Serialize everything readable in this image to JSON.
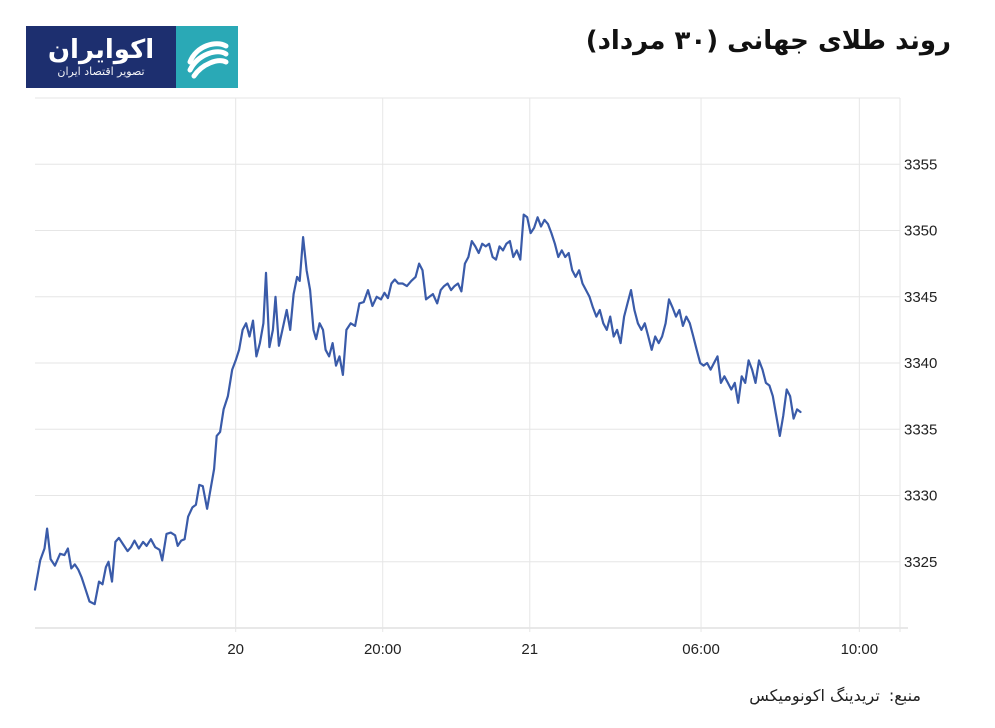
{
  "header": {
    "title": "روند طلای جهانی (۳۰ مرداد)",
    "logo_name": "اکوایران",
    "logo_tagline": "تصویر اقتصاد ایران"
  },
  "source": {
    "label": "منبع:",
    "name": "تریدینگ اکونومیکس"
  },
  "colors": {
    "line": "#3a5ba9",
    "grid": "#e6e6e6",
    "logo_dark": "#1d2f6f",
    "logo_accent": "#2aa9b6"
  },
  "chart_data": {
    "type": "line",
    "title": "",
    "xlabel": "",
    "ylabel": "",
    "y_axis_position": "right",
    "grid": true,
    "ylim": [
      3320.0,
      3360.0
    ],
    "xlim": [
      0,
      100
    ],
    "y_ticks": [
      3325,
      3330,
      3335,
      3340,
      3345,
      3350,
      3355
    ],
    "x_ticks": [
      {
        "x": 23.2,
        "label": "20"
      },
      {
        "x": 40.2,
        "label": "20:00"
      },
      {
        "x": 57.2,
        "label": "21"
      },
      {
        "x": 77.0,
        "label": "06:00"
      },
      {
        "x": 95.3,
        "label": "10:00"
      }
    ],
    "series": [
      {
        "values": [
          [
            0.0,
            3322.9
          ],
          [
            0.6,
            3325.1
          ],
          [
            1.1,
            3326.0
          ],
          [
            1.4,
            3327.5
          ],
          [
            1.8,
            3325.2
          ],
          [
            2.3,
            3324.7
          ],
          [
            2.9,
            3325.6
          ],
          [
            3.4,
            3325.5
          ],
          [
            3.8,
            3326.0
          ],
          [
            4.2,
            3324.5
          ],
          [
            4.6,
            3324.8
          ],
          [
            5.0,
            3324.4
          ],
          [
            5.4,
            3323.8
          ],
          [
            5.8,
            3323.0
          ],
          [
            6.3,
            3322.0
          ],
          [
            6.9,
            3321.8
          ],
          [
            7.4,
            3323.5
          ],
          [
            7.8,
            3323.3
          ],
          [
            8.2,
            3324.6
          ],
          [
            8.5,
            3325.0
          ],
          [
            8.9,
            3323.5
          ],
          [
            9.3,
            3326.5
          ],
          [
            9.7,
            3326.8
          ],
          [
            10.2,
            3326.3
          ],
          [
            10.7,
            3325.8
          ],
          [
            11.1,
            3326.1
          ],
          [
            11.5,
            3326.6
          ],
          [
            12.0,
            3326.0
          ],
          [
            12.5,
            3326.5
          ],
          [
            12.9,
            3326.2
          ],
          [
            13.4,
            3326.7
          ],
          [
            13.9,
            3326.1
          ],
          [
            14.4,
            3325.9
          ],
          [
            14.7,
            3325.1
          ],
          [
            15.2,
            3327.1
          ],
          [
            15.7,
            3327.2
          ],
          [
            16.2,
            3327.0
          ],
          [
            16.5,
            3326.2
          ],
          [
            16.9,
            3326.6
          ],
          [
            17.3,
            3326.7
          ],
          [
            17.7,
            3328.4
          ],
          [
            18.2,
            3329.1
          ],
          [
            18.6,
            3329.3
          ],
          [
            19.0,
            3330.8
          ],
          [
            19.4,
            3330.7
          ],
          [
            19.9,
            3329.0
          ],
          [
            20.3,
            3330.5
          ],
          [
            20.7,
            3332.0
          ],
          [
            21.0,
            3334.5
          ],
          [
            21.4,
            3334.8
          ],
          [
            21.8,
            3336.5
          ],
          [
            22.3,
            3337.5
          ],
          [
            22.8,
            3339.5
          ],
          [
            23.2,
            3340.2
          ],
          [
            23.6,
            3341.0
          ],
          [
            24.0,
            3342.5
          ],
          [
            24.4,
            3343.0
          ],
          [
            24.8,
            3342.0
          ],
          [
            25.2,
            3343.2
          ],
          [
            25.6,
            3340.5
          ],
          [
            26.0,
            3341.5
          ],
          [
            26.4,
            3343.0
          ],
          [
            26.7,
            3346.8
          ],
          [
            27.1,
            3341.2
          ],
          [
            27.5,
            3342.5
          ],
          [
            27.8,
            3345.0
          ],
          [
            28.2,
            3341.3
          ],
          [
            28.6,
            3342.5
          ],
          [
            29.1,
            3344.0
          ],
          [
            29.5,
            3342.5
          ],
          [
            29.9,
            3345.2
          ],
          [
            30.3,
            3346.5
          ],
          [
            30.6,
            3346.2
          ],
          [
            31.0,
            3349.5
          ],
          [
            31.4,
            3347.0
          ],
          [
            31.8,
            3345.5
          ],
          [
            32.2,
            3342.5
          ],
          [
            32.5,
            3341.8
          ],
          [
            32.9,
            3343.0
          ],
          [
            33.3,
            3342.5
          ],
          [
            33.6,
            3341.0
          ],
          [
            34.0,
            3340.5
          ],
          [
            34.4,
            3341.5
          ],
          [
            34.8,
            3339.8
          ],
          [
            35.2,
            3340.5
          ],
          [
            35.6,
            3339.1
          ],
          [
            36.0,
            3342.5
          ],
          [
            36.5,
            3343.0
          ],
          [
            37.0,
            3342.8
          ],
          [
            37.5,
            3344.5
          ],
          [
            38.0,
            3344.6
          ],
          [
            38.5,
            3345.5
          ],
          [
            39.0,
            3344.3
          ],
          [
            39.5,
            3345.0
          ],
          [
            40.0,
            3344.8
          ],
          [
            40.4,
            3345.3
          ],
          [
            40.8,
            3344.9
          ],
          [
            41.2,
            3346.0
          ],
          [
            41.6,
            3346.3
          ],
          [
            42.0,
            3346.0
          ],
          [
            42.5,
            3346.0
          ],
          [
            43.0,
            3345.8
          ],
          [
            43.5,
            3346.2
          ],
          [
            44.0,
            3346.5
          ],
          [
            44.4,
            3347.5
          ],
          [
            44.8,
            3347.0
          ],
          [
            45.2,
            3344.8
          ],
          [
            45.6,
            3345.0
          ],
          [
            46.0,
            3345.2
          ],
          [
            46.5,
            3344.5
          ],
          [
            46.9,
            3345.5
          ],
          [
            47.3,
            3345.8
          ],
          [
            47.7,
            3346.0
          ],
          [
            48.1,
            3345.5
          ],
          [
            48.5,
            3345.8
          ],
          [
            48.9,
            3346.0
          ],
          [
            49.3,
            3345.4
          ],
          [
            49.7,
            3347.5
          ],
          [
            50.1,
            3348.0
          ],
          [
            50.5,
            3349.2
          ],
          [
            50.9,
            3348.8
          ],
          [
            51.3,
            3348.3
          ],
          [
            51.7,
            3349.0
          ],
          [
            52.1,
            3348.8
          ],
          [
            52.5,
            3349.0
          ],
          [
            52.9,
            3348.0
          ],
          [
            53.3,
            3347.8
          ],
          [
            53.7,
            3348.8
          ],
          [
            54.1,
            3348.5
          ],
          [
            54.5,
            3349.0
          ],
          [
            54.9,
            3349.2
          ],
          [
            55.3,
            3348.0
          ],
          [
            55.7,
            3348.5
          ],
          [
            56.1,
            3347.8
          ],
          [
            56.5,
            3351.2
          ],
          [
            56.9,
            3351.0
          ],
          [
            57.3,
            3349.8
          ],
          [
            57.7,
            3350.2
          ],
          [
            58.1,
            3351.0
          ],
          [
            58.5,
            3350.3
          ],
          [
            58.9,
            3350.8
          ],
          [
            59.3,
            3350.5
          ],
          [
            59.7,
            3349.8
          ],
          [
            60.1,
            3349.0
          ],
          [
            60.5,
            3348.0
          ],
          [
            60.9,
            3348.5
          ],
          [
            61.3,
            3348.0
          ],
          [
            61.7,
            3348.3
          ],
          [
            62.1,
            3347.0
          ],
          [
            62.5,
            3346.5
          ],
          [
            62.9,
            3347.0
          ],
          [
            63.3,
            3346.0
          ],
          [
            63.7,
            3345.5
          ],
          [
            64.1,
            3345.0
          ],
          [
            64.5,
            3344.2
          ],
          [
            64.9,
            3343.5
          ],
          [
            65.3,
            3344.0
          ],
          [
            65.7,
            3343.0
          ],
          [
            66.1,
            3342.5
          ],
          [
            66.5,
            3343.5
          ],
          [
            66.9,
            3342.0
          ],
          [
            67.3,
            3342.5
          ],
          [
            67.7,
            3341.5
          ],
          [
            68.1,
            3343.5
          ],
          [
            68.5,
            3344.5
          ],
          [
            68.9,
            3345.5
          ],
          [
            69.3,
            3344.0
          ],
          [
            69.7,
            3343.0
          ],
          [
            70.1,
            3342.5
          ],
          [
            70.5,
            3343.0
          ],
          [
            70.9,
            3342.0
          ],
          [
            71.3,
            3341.0
          ],
          [
            71.7,
            3342.0
          ],
          [
            72.1,
            3341.5
          ],
          [
            72.5,
            3342.0
          ],
          [
            72.9,
            3343.0
          ],
          [
            73.3,
            3344.8
          ],
          [
            73.7,
            3344.2
          ],
          [
            74.1,
            3343.5
          ],
          [
            74.5,
            3344.0
          ],
          [
            74.9,
            3342.8
          ],
          [
            75.3,
            3343.5
          ],
          [
            75.7,
            3343.0
          ],
          [
            76.1,
            3342.0
          ],
          [
            76.5,
            3341.0
          ],
          [
            76.9,
            3340.0
          ],
          [
            77.3,
            3339.8
          ],
          [
            77.7,
            3340.0
          ],
          [
            78.1,
            3339.5
          ],
          [
            78.5,
            3340.0
          ],
          [
            78.9,
            3340.5
          ],
          [
            79.3,
            3338.5
          ],
          [
            79.7,
            3339.0
          ],
          [
            80.1,
            3338.5
          ],
          [
            80.5,
            3338.0
          ],
          [
            80.9,
            3338.5
          ],
          [
            81.3,
            3337.0
          ],
          [
            81.7,
            3339.0
          ],
          [
            82.1,
            3338.5
          ],
          [
            82.5,
            3340.2
          ],
          [
            82.9,
            3339.5
          ],
          [
            83.3,
            3338.5
          ],
          [
            83.7,
            3340.2
          ],
          [
            84.1,
            3339.5
          ],
          [
            84.5,
            3338.5
          ],
          [
            84.9,
            3338.3
          ],
          [
            85.3,
            3337.5
          ],
          [
            85.7,
            3336.0
          ],
          [
            86.1,
            3334.5
          ],
          [
            86.5,
            3336.0
          ],
          [
            86.9,
            3338.0
          ],
          [
            87.3,
            3337.5
          ],
          [
            87.7,
            3335.8
          ],
          [
            88.1,
            3336.5
          ],
          [
            88.5,
            3336.3
          ]
        ]
      }
    ]
  }
}
